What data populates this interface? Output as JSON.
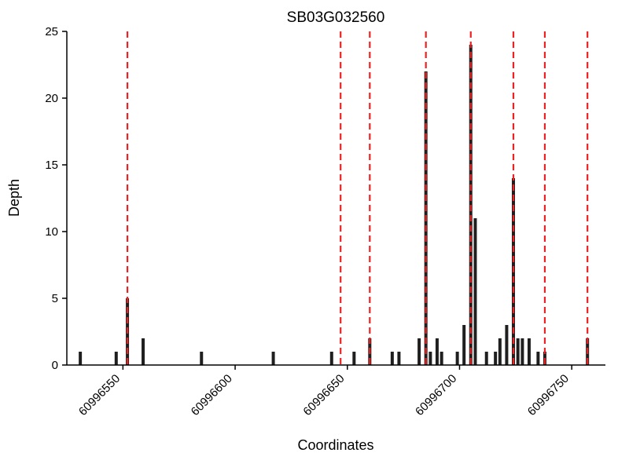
{
  "chart_data": {
    "type": "bar",
    "title": "SB03G032560",
    "xlabel": "Coordinates",
    "ylabel": "Depth",
    "xlim": [
      60996525,
      60996765
    ],
    "ylim": [
      0,
      25
    ],
    "yticks": [
      0,
      5,
      10,
      15,
      20,
      25
    ],
    "xticks": [
      60996550,
      60996600,
      60996650,
      60996700,
      60996750
    ],
    "grid": false,
    "legend": "none",
    "bar_color": "#1f1f1f",
    "axis_color": "#000000",
    "vline_color": "#ee2222",
    "vlines": [
      60996552,
      60996647,
      60996660,
      60996685,
      60996705,
      60996724,
      60996738,
      60996757
    ],
    "bars": [
      {
        "x": 60996531,
        "depth": 1
      },
      {
        "x": 60996547,
        "depth": 1
      },
      {
        "x": 60996552,
        "depth": 5
      },
      {
        "x": 60996559,
        "depth": 2
      },
      {
        "x": 60996585,
        "depth": 1
      },
      {
        "x": 60996617,
        "depth": 1
      },
      {
        "x": 60996643,
        "depth": 1
      },
      {
        "x": 60996653,
        "depth": 1
      },
      {
        "x": 60996660,
        "depth": 2
      },
      {
        "x": 60996670,
        "depth": 1
      },
      {
        "x": 60996673,
        "depth": 1
      },
      {
        "x": 60996682,
        "depth": 2
      },
      {
        "x": 60996685,
        "depth": 22
      },
      {
        "x": 60996687,
        "depth": 1
      },
      {
        "x": 60996690,
        "depth": 2
      },
      {
        "x": 60996692,
        "depth": 1
      },
      {
        "x": 60996699,
        "depth": 1
      },
      {
        "x": 60996702,
        "depth": 3
      },
      {
        "x": 60996705,
        "depth": 24
      },
      {
        "x": 60996707,
        "depth": 11
      },
      {
        "x": 60996712,
        "depth": 1
      },
      {
        "x": 60996716,
        "depth": 1
      },
      {
        "x": 60996718,
        "depth": 2
      },
      {
        "x": 60996721,
        "depth": 3
      },
      {
        "x": 60996724,
        "depth": 14
      },
      {
        "x": 60996726,
        "depth": 2
      },
      {
        "x": 60996728,
        "depth": 2
      },
      {
        "x": 60996731,
        "depth": 2
      },
      {
        "x": 60996735,
        "depth": 1
      },
      {
        "x": 60996738,
        "depth": 1
      },
      {
        "x": 60996757,
        "depth": 2
      }
    ]
  }
}
